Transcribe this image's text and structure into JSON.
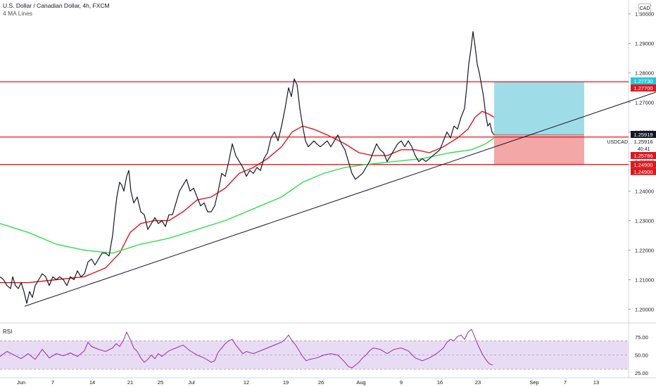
{
  "header": {
    "title": "U.S. Dollar / Canadian Dollar, 4h, FXCM",
    "indicator": "4 MA Lines"
  },
  "currency": "CAD",
  "rsi_label": "RSI",
  "symbol_label": "USDCAD",
  "countdown": "40:41",
  "price_badges": [
    {
      "text": "1.27730",
      "value": 1.2773,
      "bg": "#26c6da",
      "fg": "#ffffff"
    },
    {
      "text": "1.27700",
      "value": 1.277,
      "bg": "#e0161d",
      "fg": "#ffffff"
    },
    {
      "text": "1.25919",
      "value": 1.25919,
      "bg": "#131722",
      "fg": "#ffffff"
    },
    {
      "text": "1.25916",
      "value": 1.25916,
      "bg": "#ffffff",
      "fg": "#131722"
    },
    {
      "text": "1.25786",
      "value": 1.25786,
      "bg": "#e0161d",
      "fg": "#ffffff"
    },
    {
      "text": "1.24900",
      "value": 1.249,
      "bg": "#e0161d",
      "fg": "#ffffff"
    },
    {
      "text": "1.24900",
      "value": 1.249,
      "bg": "#e0161d",
      "fg": "#ffffff"
    }
  ],
  "chart_data": [
    {
      "type": "candlestick",
      "series_name": "U.S. Dollar / Canadian Dollar, 4h, FXCM",
      "y_ticks": [
        "1.30000",
        "1.29000",
        "1.28000",
        "1.27000",
        "1.26000",
        "1.25000",
        "1.24000",
        "1.23000",
        "1.22000",
        "1.21000",
        "1.20000"
      ],
      "ylim": [
        1.1963,
        1.3047
      ],
      "x_ticks": [
        "Jun",
        "7",
        "14",
        "21",
        "25",
        "Jul",
        "12",
        "19",
        "26",
        "Aug",
        "9",
        "16",
        "23",
        "Sep",
        "7",
        "13"
      ],
      "price_path": [
        [
          0,
          1.211
        ],
        [
          5,
          1.21
        ],
        [
          10,
          1.208
        ],
        [
          15,
          1.207
        ],
        [
          18,
          1.211
        ],
        [
          22,
          1.208
        ],
        [
          26,
          1.207
        ],
        [
          30,
          1.209
        ],
        [
          34,
          1.206
        ],
        [
          38,
          1.202
        ],
        [
          42,
          1.206
        ],
        [
          46,
          1.204
        ],
        [
          50,
          1.208
        ],
        [
          55,
          1.21
        ],
        [
          60,
          1.212
        ],
        [
          65,
          1.211
        ],
        [
          70,
          1.208
        ],
        [
          75,
          1.211
        ],
        [
          80,
          1.21
        ],
        [
          85,
          1.211
        ],
        [
          90,
          1.21
        ],
        [
          95,
          1.208
        ],
        [
          100,
          1.211
        ],
        [
          105,
          1.21
        ],
        [
          110,
          1.213
        ],
        [
          115,
          1.211
        ],
        [
          120,
          1.212
        ],
        [
          125,
          1.216
        ],
        [
          130,
          1.217
        ],
        [
          135,
          1.215
        ],
        [
          140,
          1.217
        ],
        [
          145,
          1.219
        ],
        [
          150,
          1.219
        ],
        [
          155,
          1.218
        ],
        [
          160,
          1.225
        ],
        [
          163,
          1.232
        ],
        [
          166,
          1.238
        ],
        [
          170,
          1.243
        ],
        [
          173,
          1.242
        ],
        [
          176,
          1.24
        ],
        [
          180,
          1.245
        ],
        [
          183,
          1.247
        ],
        [
          186,
          1.24
        ],
        [
          190,
          1.236
        ],
        [
          195,
          1.238
        ],
        [
          200,
          1.233
        ],
        [
          205,
          1.232
        ],
        [
          210,
          1.227
        ],
        [
          215,
          1.229
        ],
        [
          220,
          1.231
        ],
        [
          225,
          1.229
        ],
        [
          230,
          1.23
        ],
        [
          235,
          1.228
        ],
        [
          240,
          1.232
        ],
        [
          245,
          1.232
        ],
        [
          250,
          1.236
        ],
        [
          255,
          1.24
        ],
        [
          260,
          1.242
        ],
        [
          265,
          1.244
        ],
        [
          270,
          1.24
        ],
        [
          275,
          1.241
        ],
        [
          280,
          1.238
        ],
        [
          285,
          1.235
        ],
        [
          290,
          1.236
        ],
        [
          295,
          1.233
        ],
        [
          300,
          1.233
        ],
        [
          305,
          1.235
        ],
        [
          310,
          1.24
        ],
        [
          315,
          1.246
        ],
        [
          320,
          1.245
        ],
        [
          325,
          1.25
        ],
        [
          330,
          1.256
        ],
        [
          335,
          1.252
        ],
        [
          340,
          1.25
        ],
        [
          345,
          1.248
        ],
        [
          350,
          1.245
        ],
        [
          355,
          1.247
        ],
        [
          360,
          1.246
        ],
        [
          365,
          1.248
        ],
        [
          370,
          1.247
        ],
        [
          375,
          1.251
        ],
        [
          380,
          1.253
        ],
        [
          385,
          1.258
        ],
        [
          390,
          1.26
        ],
        [
          395,
          1.257
        ],
        [
          400,
          1.262
        ],
        [
          405,
          1.268
        ],
        [
          410,
          1.275
        ],
        [
          414,
          1.272
        ],
        [
          418,
          1.278
        ],
        [
          422,
          1.276
        ],
        [
          426,
          1.268
        ],
        [
          430,
          1.262
        ],
        [
          434,
          1.257
        ],
        [
          438,
          1.255
        ],
        [
          442,
          1.256
        ],
        [
          446,
          1.257
        ],
        [
          450,
          1.256
        ],
        [
          455,
          1.255
        ],
        [
          460,
          1.256
        ],
        [
          465,
          1.257
        ],
        [
          470,
          1.255
        ],
        [
          475,
          1.257
        ],
        [
          480,
          1.259
        ],
        [
          485,
          1.256
        ],
        [
          490,
          1.254
        ],
        [
          495,
          1.25
        ],
        [
          500,
          1.246
        ],
        [
          505,
          1.244
        ],
        [
          510,
          1.245
        ],
        [
          515,
          1.246
        ],
        [
          520,
          1.248
        ],
        [
          525,
          1.25
        ],
        [
          530,
          1.253
        ],
        [
          535,
          1.256
        ],
        [
          540,
          1.254
        ],
        [
          545,
          1.253
        ],
        [
          550,
          1.25
        ],
        [
          555,
          1.252
        ],
        [
          560,
          1.254
        ],
        [
          565,
          1.256
        ],
        [
          570,
          1.257
        ],
        [
          575,
          1.255
        ],
        [
          580,
          1.257
        ],
        [
          585,
          1.255
        ],
        [
          590,
          1.252
        ],
        [
          595,
          1.25
        ],
        [
          600,
          1.251
        ],
        [
          605,
          1.25
        ],
        [
          610,
          1.251
        ],
        [
          615,
          1.252
        ],
        [
          620,
          1.253
        ],
        [
          625,
          1.254
        ],
        [
          630,
          1.257
        ],
        [
          635,
          1.26
        ],
        [
          640,
          1.258
        ],
        [
          645,
          1.262
        ],
        [
          650,
          1.261
        ],
        [
          655,
          1.265
        ],
        [
          660,
          1.268
        ],
        [
          663,
          1.275
        ],
        [
          666,
          1.283
        ],
        [
          669,
          1.288
        ],
        [
          672,
          1.294
        ],
        [
          675,
          1.289
        ],
        [
          678,
          1.283
        ],
        [
          681,
          1.28
        ],
        [
          684,
          1.276
        ],
        [
          687,
          1.272
        ],
        [
          690,
          1.266
        ],
        [
          693,
          1.262
        ],
        [
          696,
          1.263
        ],
        [
          699,
          1.26
        ],
        [
          702,
          1.259
        ]
      ],
      "moving_averages": [
        {
          "color": "#e0161d",
          "points": [
            [
              0,
              1.209
            ],
            [
              40,
              1.209
            ],
            [
              80,
              1.21
            ],
            [
              120,
              1.211
            ],
            [
              150,
              1.214
            ],
            [
              170,
              1.219
            ],
            [
              185,
              1.226
            ],
            [
              200,
              1.229
            ],
            [
              220,
              1.23
            ],
            [
              240,
              1.23
            ],
            [
              260,
              1.233
            ],
            [
              280,
              1.237
            ],
            [
              300,
              1.238
            ],
            [
              320,
              1.241
            ],
            [
              340,
              1.246
            ],
            [
              360,
              1.248
            ],
            [
              380,
              1.251
            ],
            [
              400,
              1.255
            ],
            [
              415,
              1.26
            ],
            [
              430,
              1.262
            ],
            [
              445,
              1.261
            ],
            [
              465,
              1.259
            ],
            [
              490,
              1.256
            ],
            [
              510,
              1.253
            ],
            [
              530,
              1.252
            ],
            [
              550,
              1.252
            ],
            [
              570,
              1.254
            ],
            [
              590,
              1.254
            ],
            [
              610,
              1.253
            ],
            [
              630,
              1.255
            ],
            [
              650,
              1.258
            ],
            [
              665,
              1.261
            ],
            [
              675,
              1.265
            ],
            [
              685,
              1.267
            ],
            [
              695,
              1.266
            ],
            [
              702,
              1.265
            ]
          ]
        },
        {
          "color": "#2ee04f",
          "points": [
            [
              0,
              1.229
            ],
            [
              40,
              1.226
            ],
            [
              80,
              1.222
            ],
            [
              120,
              1.22
            ],
            [
              160,
              1.219
            ],
            [
              200,
              1.222
            ],
            [
              240,
              1.224
            ],
            [
              280,
              1.227
            ],
            [
              320,
              1.23
            ],
            [
              360,
              1.234
            ],
            [
              400,
              1.238
            ],
            [
              430,
              1.243
            ],
            [
              460,
              1.246
            ],
            [
              490,
              1.248
            ],
            [
              520,
              1.249
            ],
            [
              560,
              1.25
            ],
            [
              600,
              1.251
            ],
            [
              640,
              1.253
            ],
            [
              670,
              1.254
            ],
            [
              690,
              1.256
            ],
            [
              702,
              1.258
            ]
          ]
        }
      ],
      "horizontal_levels": [
        1.277,
        1.2583,
        1.249
      ],
      "trendline": {
        "from": [
          35,
          1.201
        ],
        "to": [
          932,
          1.2735
        ]
      },
      "position": {
        "entry": 1.2591,
        "target": 1.277,
        "stop": 1.249,
        "x_range": [
          702,
          830
        ]
      }
    },
    {
      "type": "line",
      "series_name": "RSI",
      "y_ticks": [
        "75.00",
        "50.00",
        "25.00"
      ],
      "ylim": [
        23,
        92
      ],
      "band": [
        30,
        70
      ],
      "points": [
        [
          0,
          48
        ],
        [
          10,
          55
        ],
        [
          20,
          50
        ],
        [
          30,
          45
        ],
        [
          40,
          52
        ],
        [
          50,
          44
        ],
        [
          60,
          58
        ],
        [
          70,
          46
        ],
        [
          80,
          52
        ],
        [
          90,
          49
        ],
        [
          100,
          53
        ],
        [
          110,
          48
        ],
        [
          120,
          56
        ],
        [
          125,
          68
        ],
        [
          130,
          62
        ],
        [
          140,
          58
        ],
        [
          150,
          55
        ],
        [
          160,
          60
        ],
        [
          165,
          66
        ],
        [
          170,
          62
        ],
        [
          175,
          70
        ],
        [
          180,
          82
        ],
        [
          185,
          72
        ],
        [
          190,
          60
        ],
        [
          195,
          55
        ],
        [
          200,
          46
        ],
        [
          205,
          40
        ],
        [
          210,
          44
        ],
        [
          215,
          50
        ],
        [
          220,
          45
        ],
        [
          225,
          52
        ],
        [
          230,
          48
        ],
        [
          240,
          56
        ],
        [
          250,
          60
        ],
        [
          260,
          64
        ],
        [
          270,
          56
        ],
        [
          280,
          50
        ],
        [
          290,
          46
        ],
        [
          300,
          40
        ],
        [
          305,
          42
        ],
        [
          310,
          54
        ],
        [
          315,
          60
        ],
        [
          320,
          66
        ],
        [
          325,
          70
        ],
        [
          330,
          72
        ],
        [
          335,
          64
        ],
        [
          340,
          58
        ],
        [
          345,
          52
        ],
        [
          350,
          55
        ],
        [
          360,
          52
        ],
        [
          370,
          56
        ],
        [
          380,
          60
        ],
        [
          390,
          64
        ],
        [
          400,
          68
        ],
        [
          405,
          72
        ],
        [
          410,
          78
        ],
        [
          415,
          70
        ],
        [
          420,
          64
        ],
        [
          425,
          56
        ],
        [
          430,
          48
        ],
        [
          435,
          42
        ],
        [
          440,
          44
        ],
        [
          450,
          46
        ],
        [
          460,
          50
        ],
        [
          470,
          52
        ],
        [
          480,
          50
        ],
        [
          490,
          40
        ],
        [
          495,
          34
        ],
        [
          500,
          32
        ],
        [
          505,
          36
        ],
        [
          510,
          40
        ],
        [
          515,
          46
        ],
        [
          520,
          50
        ],
        [
          525,
          56
        ],
        [
          530,
          60
        ],
        [
          540,
          58
        ],
        [
          550,
          52
        ],
        [
          560,
          58
        ],
        [
          570,
          60
        ],
        [
          580,
          56
        ],
        [
          590,
          46
        ],
        [
          600,
          42
        ],
        [
          610,
          46
        ],
        [
          620,
          52
        ],
        [
          630,
          60
        ],
        [
          635,
          68
        ],
        [
          640,
          72
        ],
        [
          645,
          70
        ],
        [
          650,
          76
        ],
        [
          655,
          78
        ],
        [
          660,
          72
        ],
        [
          665,
          82
        ],
        [
          670,
          86
        ],
        [
          675,
          74
        ],
        [
          680,
          62
        ],
        [
          685,
          52
        ],
        [
          690,
          44
        ],
        [
          695,
          38
        ],
        [
          700,
          36
        ]
      ]
    }
  ]
}
